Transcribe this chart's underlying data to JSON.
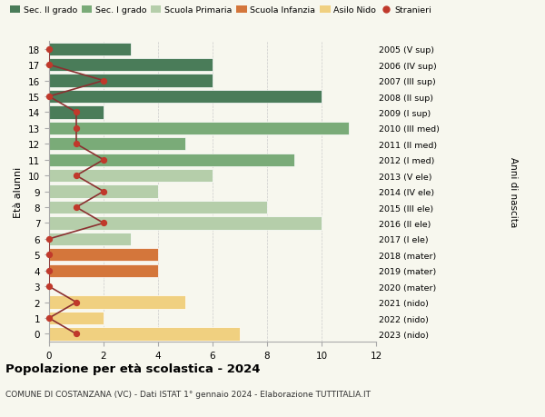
{
  "ages": [
    18,
    17,
    16,
    15,
    14,
    13,
    12,
    11,
    10,
    9,
    8,
    7,
    6,
    5,
    4,
    3,
    2,
    1,
    0
  ],
  "years": [
    "2005 (V sup)",
    "2006 (IV sup)",
    "2007 (III sup)",
    "2008 (II sup)",
    "2009 (I sup)",
    "2010 (III med)",
    "2011 (II med)",
    "2012 (I med)",
    "2013 (V ele)",
    "2014 (IV ele)",
    "2015 (III ele)",
    "2016 (II ele)",
    "2017 (I ele)",
    "2018 (mater)",
    "2019 (mater)",
    "2020 (mater)",
    "2021 (nido)",
    "2022 (nido)",
    "2023 (nido)"
  ],
  "bar_values": [
    3,
    6,
    6,
    10,
    2,
    11,
    5,
    9,
    6,
    4,
    8,
    10,
    3,
    4,
    4,
    0,
    5,
    2,
    7
  ],
  "bar_colors": [
    "#4a7c59",
    "#4a7c59",
    "#4a7c59",
    "#4a7c59",
    "#4a7c59",
    "#7aab78",
    "#7aab78",
    "#7aab78",
    "#b5ceaa",
    "#b5ceaa",
    "#b5ceaa",
    "#b5ceaa",
    "#b5ceaa",
    "#d4763b",
    "#d4763b",
    "#d4763b",
    "#f0d080",
    "#f0d080",
    "#f0d080"
  ],
  "stranieri_values": [
    0,
    0,
    2,
    0,
    1,
    1,
    1,
    2,
    1,
    2,
    1,
    2,
    0,
    0,
    0,
    0,
    1,
    0,
    1
  ],
  "xlim": [
    0,
    12
  ],
  "ylim": [
    -0.5,
    18.5
  ],
  "title": "Popolazione per età scolastica - 2024",
  "subtitle": "COMUNE DI COSTANZANA (VC) - Dati ISTAT 1° gennaio 2024 - Elaborazione TUTTITALIA.IT",
  "ylabel": "Età alunni",
  "right_label": "Anni di nascita",
  "legend_labels": [
    "Sec. II grado",
    "Sec. I grado",
    "Scuola Primaria",
    "Scuola Infanzia",
    "Asilo Nido",
    "Stranieri"
  ],
  "legend_colors": [
    "#4a7c59",
    "#7aab78",
    "#b5ceaa",
    "#d4763b",
    "#f0d080",
    "#c0392b"
  ],
  "stranieri_color": "#c0392b",
  "stranieri_line_color": "#8b3030",
  "grid_color": "#cccccc",
  "bg_color": "#f7f7ee"
}
